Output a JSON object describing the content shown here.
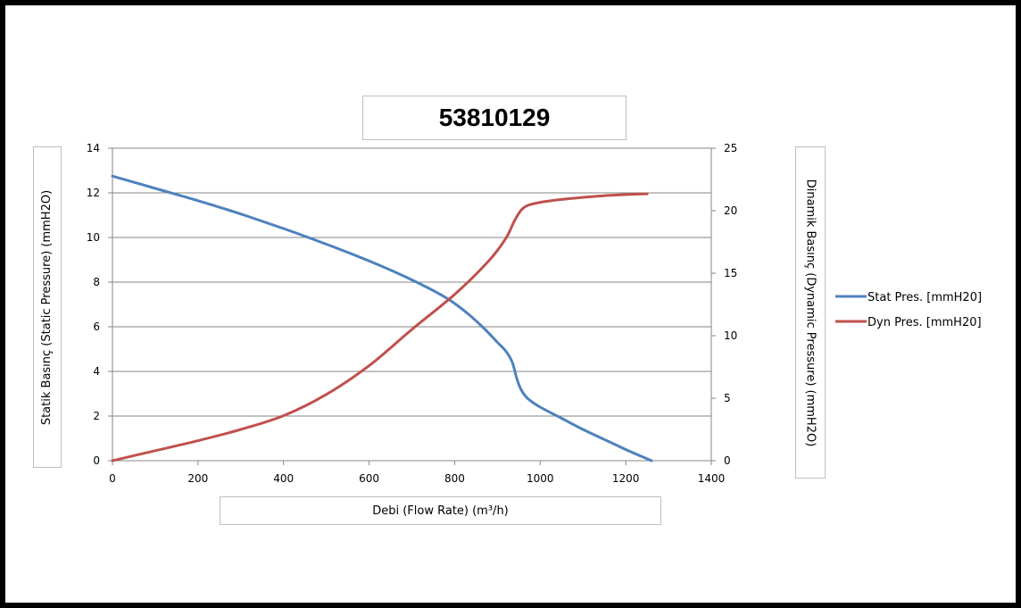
{
  "chart_data": {
    "type": "line",
    "title": "53810129",
    "xlabel": "Debi (Flow Rate) (m³/h)",
    "ylabel_left": "Statik Basınç (Static Pressure) (mmH2O)",
    "ylabel_right": "Dinamik Basınç (Dynamic Pressure) (mmH2O)",
    "xlim": [
      0,
      1400
    ],
    "ylim_left": [
      0,
      14
    ],
    "ylim_right": [
      0,
      25
    ],
    "x_ticks": [
      0,
      200,
      400,
      600,
      800,
      1000,
      1200,
      1400
    ],
    "y_left_ticks": [
      0,
      2,
      4,
      6,
      8,
      10,
      12,
      14
    ],
    "y_right_ticks": [
      0,
      5,
      10,
      15,
      20,
      25
    ],
    "grid": "horizontal",
    "legend_position": "right",
    "series": [
      {
        "name": "Stat Pres. [mmH20]",
        "axis": "left",
        "color": "#4f81bd",
        "x": [
          0,
          100,
          200,
          300,
          400,
          500,
          600,
          700,
          780,
          830,
          870,
          900,
          920,
          935,
          945,
          955,
          970,
          1000,
          1050,
          1100,
          1150,
          1200,
          1260
        ],
        "y": [
          12.75,
          12.2,
          11.65,
          11.05,
          10.4,
          9.7,
          8.95,
          8.1,
          7.3,
          6.6,
          5.9,
          5.3,
          4.9,
          4.4,
          3.7,
          3.2,
          2.8,
          2.4,
          1.9,
          1.4,
          0.95,
          0.5,
          0.0
        ]
      },
      {
        "name": "Dyn Pres. [mmH20]",
        "axis": "right",
        "color": "#c0504d",
        "x": [
          0,
          100,
          200,
          300,
          400,
          500,
          600,
          700,
          800,
          880,
          920,
          940,
          960,
          990,
          1050,
          1150,
          1250
        ],
        "y": [
          0.0,
          0.8,
          1.6,
          2.5,
          3.6,
          5.3,
          7.6,
          10.5,
          13.3,
          16.0,
          17.8,
          19.2,
          20.2,
          20.6,
          20.9,
          21.2,
          21.35
        ]
      }
    ]
  }
}
